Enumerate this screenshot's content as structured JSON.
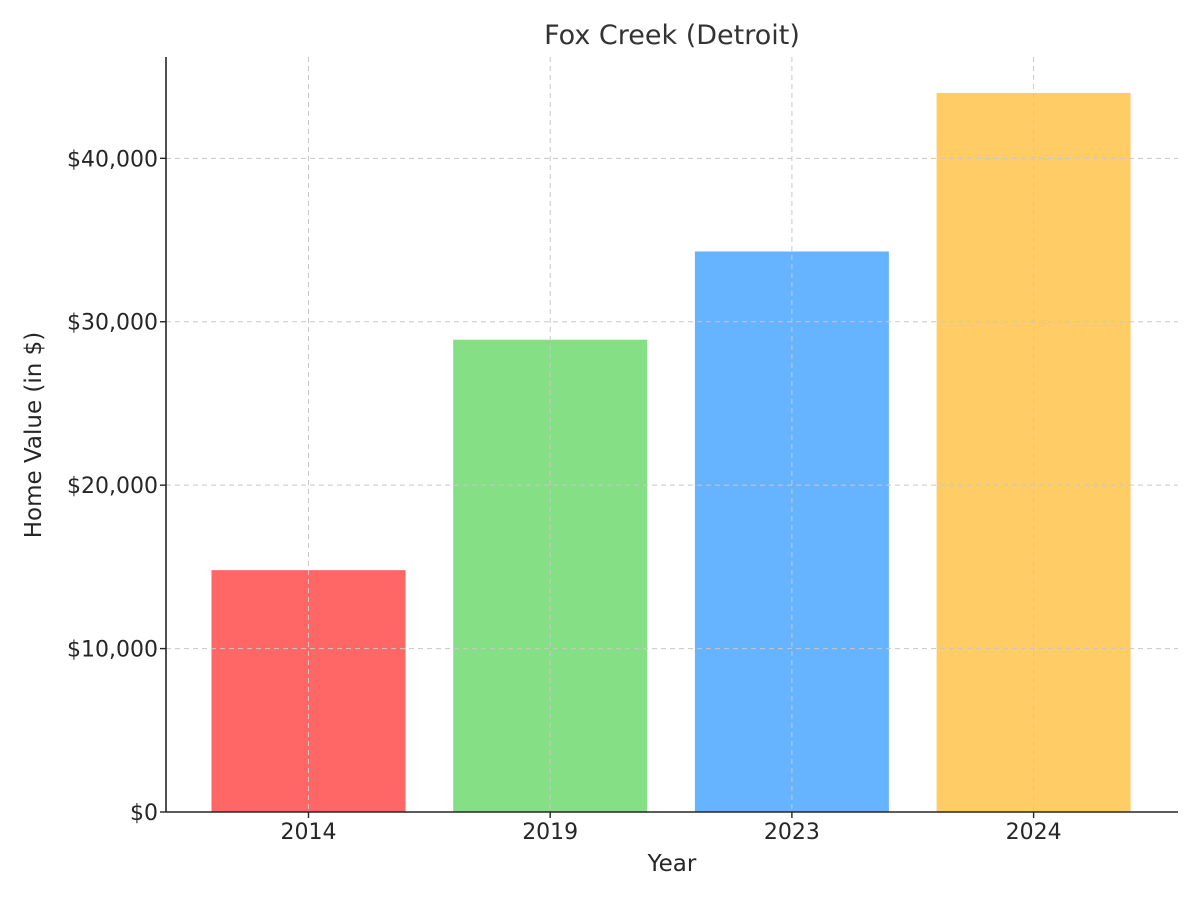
{
  "chart_data": {
    "type": "bar",
    "title": "Fox Creek (Detroit)",
    "xlabel": "Year",
    "ylabel": "Home Value (in $)",
    "categories": [
      "2014",
      "2019",
      "2023",
      "2024"
    ],
    "values": [
      14800,
      28900,
      34300,
      44000
    ],
    "colors": [
      "#ff6666",
      "#85e085",
      "#66b3ff",
      "#ffcc66"
    ],
    "ylim": [
      0,
      46200
    ],
    "yticks": [
      0,
      10000,
      20000,
      30000,
      40000
    ],
    "ytick_labels": [
      "$0",
      "$10,000",
      "$20,000",
      "$30,000",
      "$40,000"
    ],
    "grid": true
  }
}
